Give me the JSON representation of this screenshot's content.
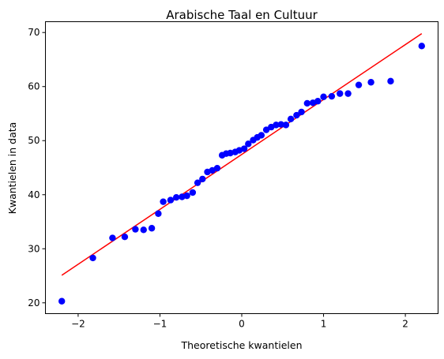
{
  "chart_data": {
    "type": "scatter",
    "title": "Arabische Taal en Cultuur",
    "xlabel": "Theoretische kwantielen",
    "ylabel": "Kwantielen in data",
    "xlim": [
      -2.4,
      2.4
    ],
    "ylim": [
      18.0,
      72.0
    ],
    "x_ticks": [
      -2,
      -1,
      0,
      1,
      2
    ],
    "x_tick_labels": [
      "−2",
      "−1",
      "0",
      "1",
      "2"
    ],
    "y_ticks": [
      20,
      30,
      40,
      50,
      60,
      70
    ],
    "y_tick_labels": [
      "20",
      "30",
      "40",
      "50",
      "60",
      "70"
    ],
    "grid": false,
    "legend": "none",
    "series": [
      {
        "kind": "points",
        "color": "#0000ff",
        "points": [
          [
            -2.2,
            20.3
          ],
          [
            -1.82,
            28.3
          ],
          [
            -1.58,
            32.0
          ],
          [
            -1.43,
            32.2
          ],
          [
            -1.3,
            33.6
          ],
          [
            -1.2,
            33.5
          ],
          [
            -1.1,
            33.8
          ],
          [
            -1.02,
            36.5
          ],
          [
            -0.96,
            38.7
          ],
          [
            -0.87,
            39.0
          ],
          [
            -0.8,
            39.5
          ],
          [
            -0.73,
            39.6
          ],
          [
            -0.67,
            39.8
          ],
          [
            -0.6,
            40.4
          ],
          [
            -0.54,
            42.2
          ],
          [
            -0.48,
            42.9
          ],
          [
            -0.42,
            44.2
          ],
          [
            -0.36,
            44.5
          ],
          [
            -0.3,
            44.9
          ],
          [
            -0.24,
            47.3
          ],
          [
            -0.19,
            47.6
          ],
          [
            -0.14,
            47.7
          ],
          [
            -0.08,
            47.9
          ],
          [
            -0.03,
            48.2
          ],
          [
            0.03,
            48.5
          ],
          [
            0.08,
            49.4
          ],
          [
            0.14,
            50.1
          ],
          [
            0.19,
            50.6
          ],
          [
            0.24,
            51.0
          ],
          [
            0.3,
            52.0
          ],
          [
            0.36,
            52.5
          ],
          [
            0.42,
            52.9
          ],
          [
            0.48,
            53.0
          ],
          [
            0.54,
            52.9
          ],
          [
            0.6,
            54.0
          ],
          [
            0.67,
            54.7
          ],
          [
            0.73,
            55.3
          ],
          [
            0.8,
            56.9
          ],
          [
            0.87,
            57.0
          ],
          [
            0.93,
            57.3
          ],
          [
            1.0,
            58.1
          ],
          [
            1.1,
            58.2
          ],
          [
            1.2,
            58.7
          ],
          [
            1.3,
            58.7
          ],
          [
            1.43,
            60.3
          ],
          [
            1.58,
            60.8
          ],
          [
            1.82,
            61.0
          ],
          [
            2.2,
            67.5
          ]
        ]
      },
      {
        "kind": "line",
        "color": "#ff0000",
        "points": [
          [
            -2.2,
            25.1
          ],
          [
            2.2,
            69.8
          ]
        ]
      }
    ]
  }
}
